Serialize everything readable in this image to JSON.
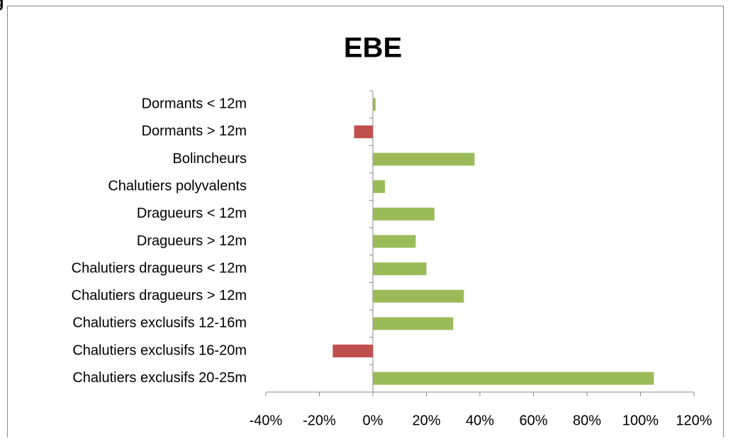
{
  "caption": "g",
  "chart_data": {
    "type": "bar",
    "orientation": "horizontal",
    "title": "EBE",
    "categories": [
      "Dormants < 12m",
      "Dormants > 12m",
      "Bolincheurs",
      "Chalutiers polyvalents",
      "Dragueurs < 12m",
      "Dragueurs > 12m",
      "Chalutiers dragueurs < 12m",
      "Chalutiers dragueurs > 12m",
      "Chalutiers exclusifs 12-16m",
      "Chalutiers exclusifs 16-20m",
      "Chalutiers exclusifs 20-25m"
    ],
    "values": [
      1,
      -7,
      38,
      4.5,
      23,
      16,
      20,
      34,
      30,
      -15,
      105
    ],
    "color": "#9bbb59",
    "negative_color": "#c0504d",
    "xlim": [
      -40,
      120
    ],
    "xticks": [
      {
        "value": -40,
        "label": "-40%"
      },
      {
        "value": -20,
        "label": "-20%"
      },
      {
        "value": 0,
        "label": "0%"
      },
      {
        "value": 20,
        "label": "20%"
      },
      {
        "value": 40,
        "label": "40%"
      },
      {
        "value": 60,
        "label": "60%"
      },
      {
        "value": 80,
        "label": "80%"
      },
      {
        "value": 100,
        "label": "100%"
      },
      {
        "value": 120,
        "label": "120%"
      }
    ],
    "grid": false
  }
}
